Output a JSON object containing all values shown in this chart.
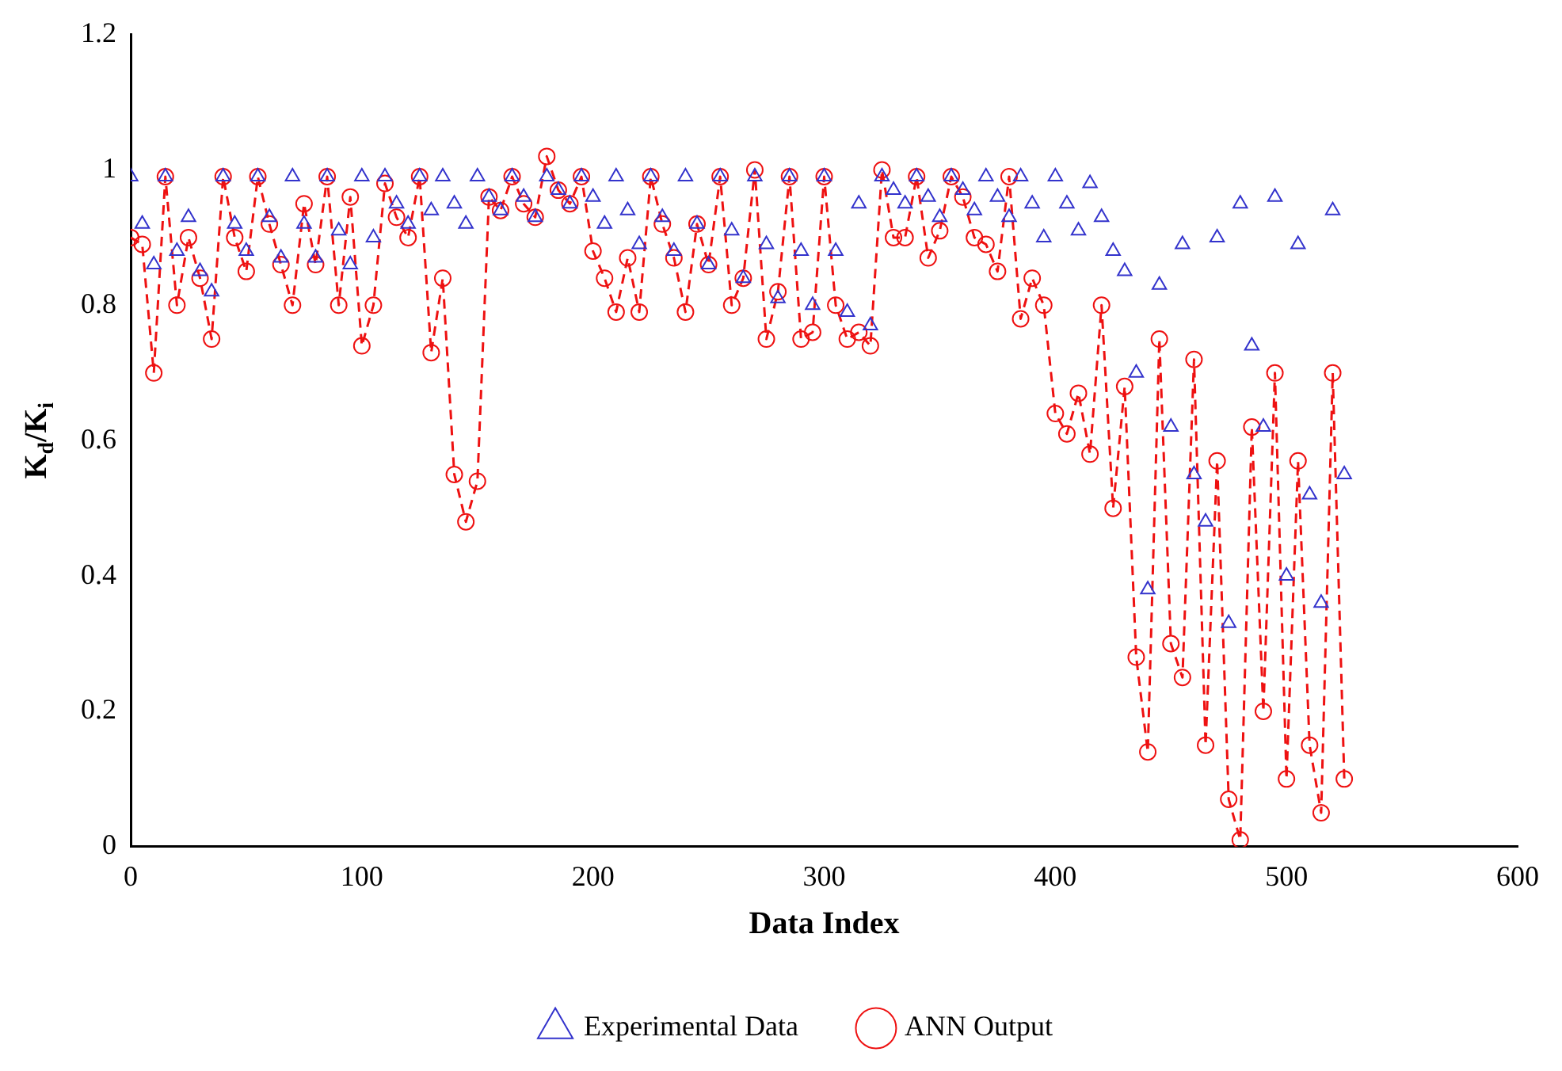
{
  "chart_data": {
    "type": "scatter",
    "xlabel": "Data Index",
    "ylabel": "K$_{d}$/K$_{i}$",
    "xlim": [
      0,
      600
    ],
    "xticks": [
      0,
      100,
      200,
      300,
      400,
      500,
      600
    ],
    "ylim": [
      0,
      1.2
    ],
    "yticks": [
      0,
      0.2,
      0.4,
      0.6,
      0.8,
      1,
      1.2
    ],
    "grid": false,
    "legend": "bottom",
    "x": [
      0,
      5,
      10,
      15,
      20,
      25,
      30,
      35,
      40,
      45,
      50,
      55,
      60,
      65,
      70,
      75,
      80,
      85,
      90,
      95,
      100,
      105,
      110,
      115,
      120,
      125,
      130,
      135,
      140,
      145,
      150,
      155,
      160,
      165,
      170,
      175,
      180,
      185,
      190,
      195,
      200,
      205,
      210,
      215,
      220,
      225,
      230,
      235,
      240,
      245,
      250,
      255,
      260,
      265,
      270,
      275,
      280,
      285,
      290,
      295,
      300,
      305,
      310,
      315,
      320,
      325,
      330,
      335,
      340,
      345,
      350,
      355,
      360,
      365,
      370,
      375,
      380,
      385,
      390,
      395,
      400,
      405,
      410,
      415,
      420,
      425,
      430,
      435,
      440,
      445,
      450,
      455,
      460,
      465,
      470,
      475,
      480,
      485,
      490,
      495,
      500,
      505,
      510,
      515,
      520,
      525
    ],
    "series": [
      {
        "name": "Experimental Data",
        "marker": "triangle",
        "color": "#3333cc",
        "values": [
          0.99,
          0.92,
          0.86,
          0.99,
          0.88,
          0.93,
          0.85,
          0.82,
          0.99,
          0.92,
          0.88,
          0.99,
          0.93,
          0.87,
          0.99,
          0.92,
          0.87,
          0.99,
          0.91,
          0.86,
          0.99,
          0.9,
          0.99,
          0.95,
          0.92,
          0.99,
          0.94,
          0.99,
          0.95,
          0.92,
          0.99,
          0.96,
          0.94,
          0.99,
          0.96,
          0.93,
          0.99,
          0.97,
          0.95,
          0.99,
          0.96,
          0.92,
          0.99,
          0.94,
          0.89,
          0.99,
          0.93,
          0.88,
          0.99,
          0.92,
          0.86,
          0.99,
          0.91,
          0.84,
          0.99,
          0.89,
          0.81,
          0.99,
          0.88,
          0.8,
          0.99,
          0.88,
          0.79,
          0.95,
          0.77,
          0.99,
          0.97,
          0.95,
          0.99,
          0.96,
          0.93,
          0.99,
          0.97,
          0.94,
          0.99,
          0.96,
          0.93,
          0.99,
          0.95,
          0.9,
          0.99,
          0.95,
          0.91,
          0.98,
          0.93,
          0.88,
          0.85,
          0.7,
          0.38,
          0.83,
          0.62,
          0.89,
          0.55,
          0.48,
          0.9,
          0.33,
          0.95,
          0.74,
          0.62,
          0.96,
          0.4,
          0.89,
          0.52,
          0.36,
          0.94,
          0.55
        ]
      },
      {
        "name": "ANN Output",
        "type": "line",
        "marker": "circle",
        "line_style": "dashed",
        "color": "#ee1111",
        "values": [
          0.9,
          0.89,
          0.7,
          0.99,
          0.8,
          0.9,
          0.84,
          0.75,
          0.99,
          0.9,
          0.85,
          0.99,
          0.92,
          0.86,
          0.8,
          0.95,
          0.86,
          0.99,
          0.8,
          0.96,
          0.74,
          0.8,
          0.98,
          0.93,
          0.9,
          0.99,
          0.73,
          0.84,
          0.55,
          0.48,
          0.54,
          0.96,
          0.94,
          0.99,
          0.95,
          0.93,
          1.02,
          0.97,
          0.95,
          0.99,
          0.88,
          0.84,
          0.79,
          0.87,
          0.79,
          0.99,
          0.92,
          0.87,
          0.79,
          0.92,
          0.86,
          0.99,
          0.8,
          0.84,
          1,
          0.75,
          0.82,
          0.99,
          0.75,
          0.76,
          0.99,
          0.8,
          0.75,
          0.76,
          0.74,
          1,
          0.9,
          0.9,
          0.99,
          0.87,
          0.91,
          0.99,
          0.96,
          0.9,
          0.89,
          0.85,
          0.99,
          0.78,
          0.84,
          0.8,
          0.64,
          0.61,
          0.67,
          0.58,
          0.8,
          0.5,
          0.68,
          0.28,
          0.14,
          0.75,
          0.3,
          0.25,
          0.72,
          0.15,
          0.57,
          0.07,
          0.01,
          0.62,
          0.2,
          0.7,
          0.1,
          0.57,
          0.15,
          0.05,
          0.7,
          0.1
        ]
      }
    ]
  }
}
